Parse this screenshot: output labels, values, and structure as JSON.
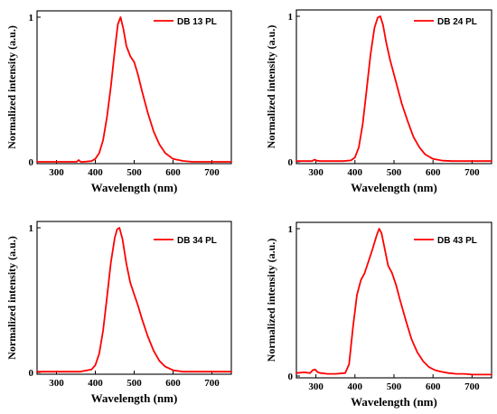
{
  "chart_data": [
    {
      "type": "line",
      "xlabel": "Wavelength (nm)",
      "ylabel": "Normalized intensity (a.u.)",
      "xlim": [
        250,
        750
      ],
      "ylim": [
        0,
        1
      ],
      "xticks": [
        300,
        400,
        500,
        600,
        700
      ],
      "yticks": [
        0,
        1
      ],
      "series": [
        {
          "name": "DB 13 PL",
          "color": "#ff0000",
          "x": [
            250,
            340,
            352,
            357,
            362,
            370,
            390,
            400,
            410,
            420,
            430,
            440,
            450,
            458,
            465,
            472,
            480,
            490,
            500,
            510,
            520,
            535,
            550,
            565,
            580,
            600,
            625,
            650,
            700,
            750
          ],
          "y": [
            0,
            0,
            0,
            0.012,
            0,
            0,
            0.005,
            0.02,
            0.06,
            0.15,
            0.31,
            0.52,
            0.77,
            0.95,
            1.0,
            0.92,
            0.8,
            0.73,
            0.69,
            0.6,
            0.49,
            0.34,
            0.21,
            0.12,
            0.06,
            0.02,
            0.006,
            0,
            0,
            0
          ]
        }
      ]
    },
    {
      "type": "line",
      "xlabel": "Wavelength (nm)",
      "ylabel": "Normalized intensity (a.u.)",
      "xlim": [
        250,
        750
      ],
      "ylim": [
        0,
        1
      ],
      "xticks": [
        300,
        400,
        500,
        600,
        700
      ],
      "yticks": [
        0,
        1
      ],
      "series": [
        {
          "name": "DB 24 PL",
          "color": "#ff0000",
          "x": [
            250,
            290,
            297,
            302,
            310,
            370,
            390,
            400,
            410,
            420,
            430,
            440,
            450,
            458,
            465,
            472,
            480,
            490,
            500,
            510,
            520,
            535,
            550,
            565,
            580,
            600,
            625,
            650,
            700,
            750
          ],
          "y": [
            0.005,
            0.005,
            0.015,
            0.008,
            0.005,
            0.005,
            0.01,
            0.03,
            0.1,
            0.26,
            0.5,
            0.74,
            0.92,
            0.99,
            1.0,
            0.94,
            0.82,
            0.7,
            0.6,
            0.5,
            0.4,
            0.28,
            0.17,
            0.1,
            0.05,
            0.02,
            0.008,
            0.005,
            0.005,
            0.005
          ]
        }
      ]
    },
    {
      "type": "line",
      "xlabel": "Wavelength (nm)",
      "ylabel": "Normalized intensity (a.u.)",
      "xlim": [
        250,
        750
      ],
      "ylim": [
        0,
        1
      ],
      "xticks": [
        300,
        400,
        500,
        600,
        700
      ],
      "yticks": [
        0,
        1
      ],
      "series": [
        {
          "name": "DB 34 PL",
          "color": "#ff0000",
          "x": [
            250,
            300,
            360,
            390,
            400,
            410,
            420,
            430,
            440,
            450,
            456,
            462,
            470,
            480,
            490,
            500,
            510,
            520,
            535,
            550,
            565,
            580,
            600,
            625,
            650,
            700,
            750
          ],
          "y": [
            0.005,
            0.005,
            0.005,
            0.02,
            0.05,
            0.13,
            0.29,
            0.52,
            0.76,
            0.93,
            0.99,
            1.0,
            0.92,
            0.75,
            0.62,
            0.54,
            0.46,
            0.37,
            0.25,
            0.15,
            0.08,
            0.04,
            0.015,
            0.005,
            0.005,
            0.005,
            0.005
          ]
        }
      ]
    },
    {
      "type": "line",
      "xlabel": "Wavelength (nm)",
      "ylabel": "Normalized intensity (a.u.)",
      "xlim": [
        250,
        750
      ],
      "ylim": [
        0,
        1
      ],
      "xticks": [
        300,
        400,
        500,
        600,
        700
      ],
      "yticks": [
        0,
        1
      ],
      "series": [
        {
          "name": "DB 43 PL",
          "color": "#ff0000",
          "x": [
            250,
            270,
            285,
            292,
            298,
            305,
            312,
            330,
            350,
            375,
            385,
            395,
            405,
            415,
            425,
            435,
            445,
            455,
            462,
            468,
            475,
            485,
            495,
            505,
            515,
            530,
            545,
            560,
            575,
            590,
            605,
            620,
            640,
            660,
            680,
            700,
            720,
            750
          ],
          "y": [
            0.02,
            0.025,
            0.02,
            0.04,
            0.045,
            0.025,
            0.02,
            0.015,
            0.015,
            0.02,
            0.08,
            0.33,
            0.55,
            0.65,
            0.7,
            0.78,
            0.86,
            0.95,
            1.0,
            0.97,
            0.88,
            0.75,
            0.7,
            0.62,
            0.52,
            0.38,
            0.25,
            0.16,
            0.1,
            0.06,
            0.04,
            0.03,
            0.02,
            0.015,
            0.015,
            0.01,
            0.01,
            0.01
          ]
        }
      ]
    }
  ]
}
